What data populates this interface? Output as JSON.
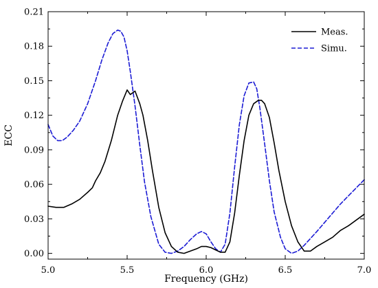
{
  "chart_data": {
    "type": "line",
    "title": "",
    "xlabel": "Frequency (GHz)",
    "ylabel": "ECC",
    "xlim": [
      5.0,
      7.0
    ],
    "ylim": [
      -0.005,
      0.21
    ],
    "xticks": [
      5.0,
      5.5,
      6.0,
      6.5,
      7.0
    ],
    "xtick_labels": [
      "5.0",
      "5.5",
      "6.0",
      "6.5",
      "7.0"
    ],
    "yticks": [
      0.0,
      0.03,
      0.06,
      0.09,
      0.12,
      0.15,
      0.18,
      0.21
    ],
    "ytick_labels": [
      "0.00",
      "0.03",
      "0.06",
      "0.09",
      "0.12",
      "0.15",
      "0.18",
      "0.21"
    ],
    "grid": false,
    "legend_position": "top-right",
    "series": [
      {
        "name": "Meas.",
        "color": "#000000",
        "dash": "solid",
        "x": [
          5.0,
          5.05,
          5.1,
          5.15,
          5.2,
          5.25,
          5.28,
          5.3,
          5.33,
          5.36,
          5.4,
          5.44,
          5.47,
          5.5,
          5.52,
          5.55,
          5.58,
          5.6,
          5.63,
          5.66,
          5.7,
          5.74,
          5.78,
          5.82,
          5.86,
          5.9,
          5.94,
          5.97,
          6.0,
          6.03,
          6.06,
          6.09,
          6.12,
          6.15,
          6.18,
          6.21,
          6.24,
          6.27,
          6.3,
          6.33,
          6.35,
          6.37,
          6.4,
          6.43,
          6.46,
          6.5,
          6.54,
          6.58,
          6.62,
          6.66,
          6.7,
          6.75,
          6.8,
          6.85,
          6.9,
          6.95,
          7.0
        ],
        "y": [
          0.041,
          0.04,
          0.04,
          0.043,
          0.047,
          0.053,
          0.057,
          0.063,
          0.07,
          0.08,
          0.098,
          0.12,
          0.132,
          0.142,
          0.138,
          0.141,
          0.13,
          0.12,
          0.098,
          0.072,
          0.04,
          0.018,
          0.006,
          0.001,
          0.0,
          0.002,
          0.004,
          0.006,
          0.006,
          0.005,
          0.003,
          0.001,
          0.001,
          0.01,
          0.035,
          0.068,
          0.098,
          0.12,
          0.13,
          0.133,
          0.133,
          0.13,
          0.118,
          0.096,
          0.072,
          0.045,
          0.024,
          0.01,
          0.002,
          0.002,
          0.006,
          0.01,
          0.014,
          0.02,
          0.024,
          0.029,
          0.034
        ]
      },
      {
        "name": "Simu.",
        "color": "#1a1ad4",
        "dash": "dashed",
        "x": [
          5.0,
          5.03,
          5.06,
          5.09,
          5.12,
          5.16,
          5.2,
          5.25,
          5.3,
          5.34,
          5.38,
          5.41,
          5.44,
          5.46,
          5.48,
          5.5,
          5.52,
          5.55,
          5.58,
          5.61,
          5.65,
          5.7,
          5.74,
          5.78,
          5.82,
          5.86,
          5.9,
          5.94,
          5.97,
          6.0,
          6.03,
          6.06,
          6.09,
          6.12,
          6.15,
          6.18,
          6.21,
          6.24,
          6.27,
          6.3,
          6.32,
          6.34,
          6.37,
          6.4,
          6.43,
          6.47,
          6.5,
          6.54,
          6.58,
          6.62,
          6.66,
          6.7,
          6.75,
          6.8,
          6.85,
          6.9,
          6.95,
          7.0
        ],
        "y": [
          0.112,
          0.102,
          0.098,
          0.098,
          0.101,
          0.107,
          0.115,
          0.13,
          0.15,
          0.168,
          0.183,
          0.191,
          0.194,
          0.193,
          0.188,
          0.176,
          0.158,
          0.128,
          0.094,
          0.062,
          0.032,
          0.008,
          0.001,
          0.0,
          0.002,
          0.006,
          0.012,
          0.017,
          0.019,
          0.017,
          0.01,
          0.004,
          0.001,
          0.008,
          0.035,
          0.075,
          0.112,
          0.137,
          0.148,
          0.149,
          0.143,
          0.126,
          0.095,
          0.063,
          0.036,
          0.014,
          0.004,
          0.0,
          0.002,
          0.007,
          0.013,
          0.019,
          0.027,
          0.035,
          0.043,
          0.05,
          0.057,
          0.064
        ]
      }
    ]
  }
}
